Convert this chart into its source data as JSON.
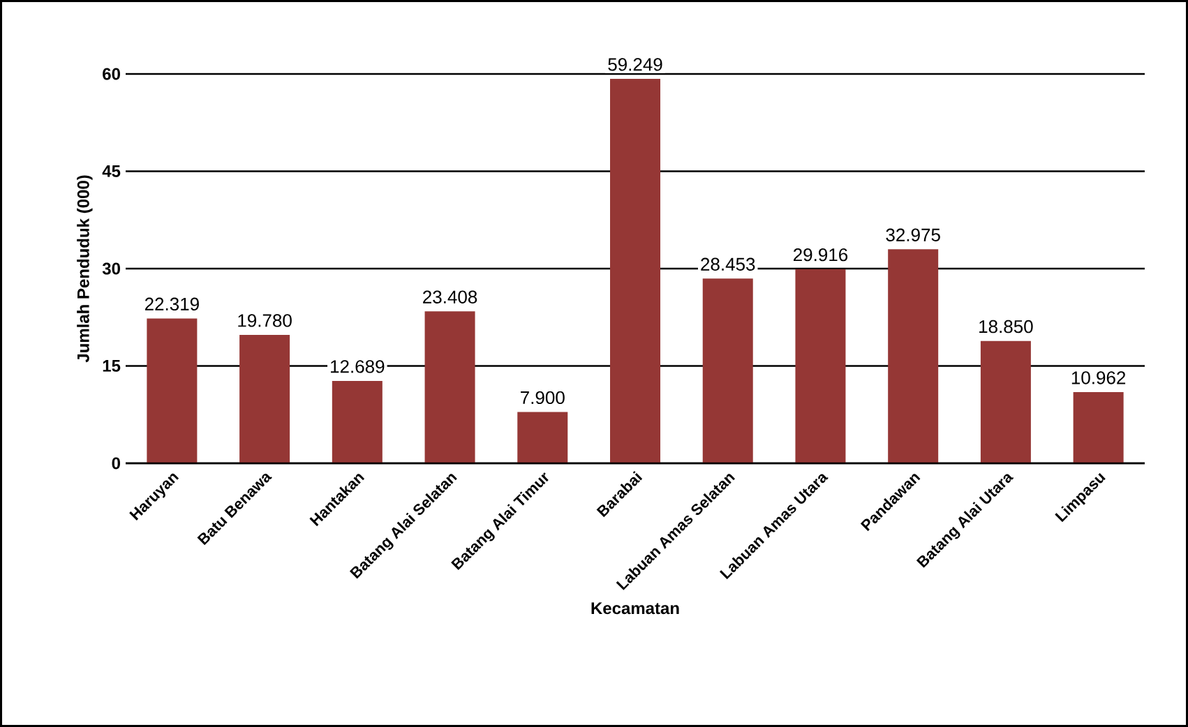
{
  "chart_data": {
    "type": "bar",
    "xlabel": "Kecamatan",
    "ylabel": "Jumlah Penduduk (000)",
    "categories": [
      "Haruyan",
      "Batu Benawa",
      "Hantakan",
      "Batang Alai Selatan",
      "Batang Alai Timur",
      "Barabai",
      "Labuan Amas Selatan",
      "Labuan Amas Utara",
      "Pandawan",
      "Batang Alai Utara",
      "Limpasu"
    ],
    "values": [
      22.319,
      19.78,
      12.689,
      23.408,
      7.9,
      59.249,
      28.453,
      29.916,
      32.975,
      18.85,
      10.962
    ],
    "value_labels": [
      "22.319",
      "19.780",
      "12.689",
      "23.408",
      "7.900",
      "59.249",
      "28.453",
      "29.916",
      "32.975",
      "18.850",
      "10.962"
    ],
    "color": "#953735",
    "ylim": [
      0,
      60
    ],
    "yticks": [
      0,
      15,
      30,
      45,
      60
    ],
    "grid": "y"
  }
}
